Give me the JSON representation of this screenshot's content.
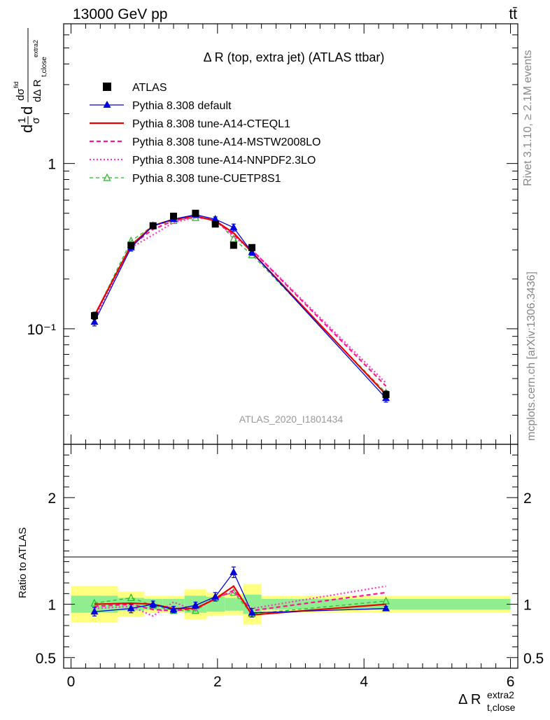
{
  "header": {
    "energy_label": "13000 GeV pp",
    "process_label": "tt̄"
  },
  "side_labels": {
    "rivet": "Rivet 3.1.10, ≥ 2.1M events",
    "mcplots": "mcplots.cern.ch [arXiv:1306.3436]"
  },
  "colors": {
    "atlas": "#000000",
    "default": "#0000dd",
    "cteql1": "#ee0000",
    "mstw": "#ff1493",
    "nnpdf": "#ff33cc",
    "cuetp8s1": "#22bb22",
    "band_inner": "#90ee90",
    "band_outer": "#ffff80"
  },
  "chart_data": [
    {
      "type": "line",
      "title": "Δ R (top, extra jet) (ATLAS ttbar)",
      "watermark": "ATLAS_2020_I1801434",
      "ylabel": "dσ/dΔR (1/σ)",
      "yscale": "log",
      "ylim": [
        0.02,
        7
      ],
      "xlim": [
        -0.1,
        6.1
      ],
      "y_ticks": [
        "10⁻¹",
        "1"
      ],
      "x": [
        0.32,
        0.82,
        1.12,
        1.4,
        1.7,
        1.97,
        2.22,
        2.47,
        4.3
      ],
      "legend_position": "top-left",
      "series": [
        {
          "name": "ATLAS",
          "key": "atlas",
          "values": [
            0.12,
            0.32,
            0.42,
            0.48,
            0.5,
            0.43,
            0.32,
            0.31,
            0.04
          ],
          "errors": [
            0.006,
            0.01,
            0.01,
            0.01,
            0.01,
            0.01,
            0.01,
            0.01,
            0.002
          ]
        },
        {
          "name": "Pythia 8.308 default",
          "key": "default",
          "values": [
            0.11,
            0.31,
            0.42,
            0.46,
            0.49,
            0.46,
            0.41,
            0.29,
            0.038
          ],
          "errors": [
            0.006,
            0.015,
            0.012,
            0.012,
            0.015,
            0.015,
            0.02,
            0.012,
            0.002
          ]
        },
        {
          "name": "Pythia 8.308 tune-A14-CTEQL1",
          "key": "cteql1",
          "values": [
            0.12,
            0.32,
            0.42,
            0.46,
            0.48,
            0.45,
            0.38,
            0.29,
            0.04
          ]
        },
        {
          "name": "Pythia 8.308 tune-A14-MSTW2008LO",
          "key": "mstw",
          "values": [
            0.12,
            0.32,
            0.4,
            0.45,
            0.48,
            0.45,
            0.37,
            0.3,
            0.045
          ]
        },
        {
          "name": "Pythia 8.308 tune-A14-NNPDF2.3LO",
          "key": "nnpdf",
          "values": [
            0.115,
            0.31,
            0.37,
            0.44,
            0.47,
            0.46,
            0.36,
            0.3,
            0.047
          ]
        },
        {
          "name": "Pythia 8.308 tune-CUETP8S1",
          "key": "cuetp8s1",
          "values": [
            0.12,
            0.34,
            0.42,
            0.45,
            0.47,
            0.46,
            0.35,
            0.28,
            0.041
          ]
        }
      ]
    },
    {
      "type": "line",
      "ylabel": "Ratio to ATLAS",
      "xlabel": "Δ R t,close extra2",
      "ylim": [
        0.4,
        2.5
      ],
      "xlim": [
        -0.1,
        6.1
      ],
      "x_ticks": [
        "0",
        "2",
        "4",
        "6"
      ],
      "y_ticks": [
        "0.5",
        "1",
        "2"
      ],
      "bin_edges": [
        0.0,
        0.64,
        1.0,
        1.25,
        1.55,
        1.85,
        2.1,
        2.35,
        2.6,
        6.0
      ],
      "band_inner": [
        0.08,
        0.06,
        0.05,
        0.05,
        0.08,
        0.07,
        0.06,
        0.09,
        0.05
      ],
      "band_outer": [
        0.17,
        0.12,
        0.08,
        0.08,
        0.14,
        0.11,
        0.1,
        0.19,
        0.08
      ],
      "x": [
        0.32,
        0.82,
        1.12,
        1.4,
        1.7,
        1.97,
        2.22,
        2.47,
        4.3
      ],
      "series": [
        {
          "key": "default",
          "values": [
            0.93,
            0.96,
            1.0,
            0.95,
            0.99,
            1.07,
            1.3,
            0.92,
            0.96
          ],
          "errors": [
            0.04,
            0.04,
            0.03,
            0.03,
            0.03,
            0.04,
            0.05,
            0.04,
            0.02
          ]
        },
        {
          "key": "cteql1",
          "values": [
            1.0,
            1.01,
            1.0,
            0.96,
            0.96,
            1.05,
            1.17,
            0.9,
            1.0
          ]
        },
        {
          "key": "mstw",
          "values": [
            0.98,
            1.0,
            0.95,
            0.94,
            0.96,
            1.05,
            1.13,
            0.94,
            1.11
          ]
        },
        {
          "key": "nnpdf",
          "values": [
            0.96,
            0.98,
            0.89,
            1.02,
            0.94,
            1.07,
            1.11,
            0.96,
            1.17
          ]
        },
        {
          "key": "cuetp8s1",
          "values": [
            1.01,
            1.06,
            0.99,
            0.94,
            0.94,
            1.06,
            1.11,
            0.91,
            1.03
          ]
        }
      ]
    }
  ]
}
